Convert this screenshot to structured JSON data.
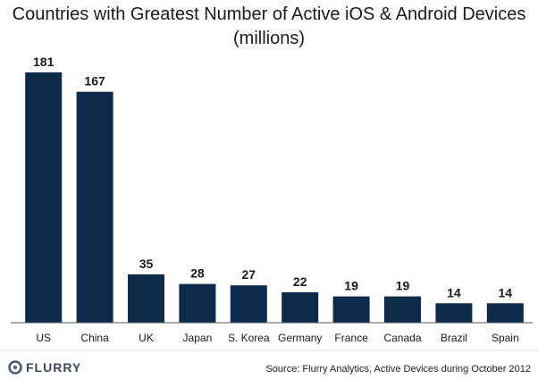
{
  "chart_data": {
    "type": "bar",
    "title": "Countries with Greatest Number of Active iOS & Android Devices",
    "subtitle": "(millions)",
    "categories": [
      "US",
      "China",
      "UK",
      "Japan",
      "S. Korea",
      "Germany",
      "France",
      "Canada",
      "Brazil",
      "Spain"
    ],
    "values": [
      181,
      167,
      35,
      28,
      27,
      22,
      19,
      19,
      14,
      14
    ],
    "data_labels": [
      "181",
      "167",
      "35",
      "28",
      "27",
      "22",
      "19",
      "19",
      "14",
      "14"
    ],
    "ylim": [
      0,
      181
    ],
    "grid": false,
    "legend": "none",
    "bar_color": "#0d2a4a"
  },
  "footer": {
    "logo": "FLURRY",
    "source": "Source: Flurry Analytics, Active Devices during October 2012"
  }
}
